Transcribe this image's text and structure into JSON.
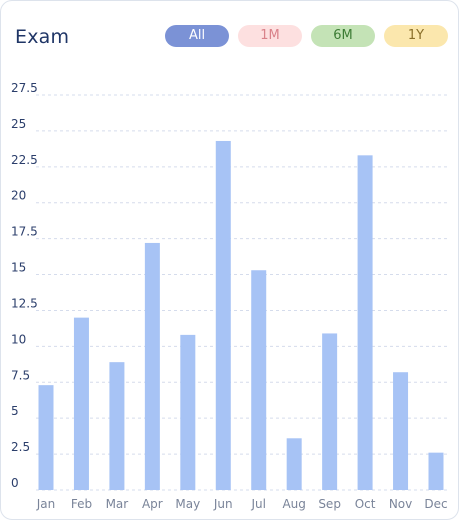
{
  "header": {
    "title": "Exam",
    "filters": [
      {
        "label": "All",
        "bg": "#7b92d6",
        "fg": "#ffffff"
      },
      {
        "label": "1M",
        "bg": "#fde0e0",
        "fg": "#d9828a"
      },
      {
        "label": "6M",
        "bg": "#c4e3b6",
        "fg": "#3d7d35"
      },
      {
        "label": "1Y",
        "bg": "#fbe7ad",
        "fg": "#8a6f2a"
      }
    ]
  },
  "chart_data": {
    "type": "bar",
    "categories": [
      "Jan",
      "Feb",
      "Mar",
      "Apr",
      "May",
      "Jun",
      "Jul",
      "Aug",
      "Sep",
      "Oct",
      "Nov",
      "Dec"
    ],
    "values": [
      7.3,
      12.0,
      8.9,
      17.2,
      10.8,
      24.3,
      15.3,
      3.6,
      10.9,
      23.3,
      8.2,
      2.6
    ],
    "yticks": [
      "0",
      "2.5",
      "5",
      "7.5",
      "10",
      "12.5",
      "15",
      "17.5",
      "20",
      "22.5",
      "25",
      "27.5"
    ],
    "ylim": [
      0,
      27.5
    ],
    "grid": true,
    "bar_color": "#a7c3f5",
    "title": "",
    "xlabel": "",
    "ylabel": ""
  }
}
